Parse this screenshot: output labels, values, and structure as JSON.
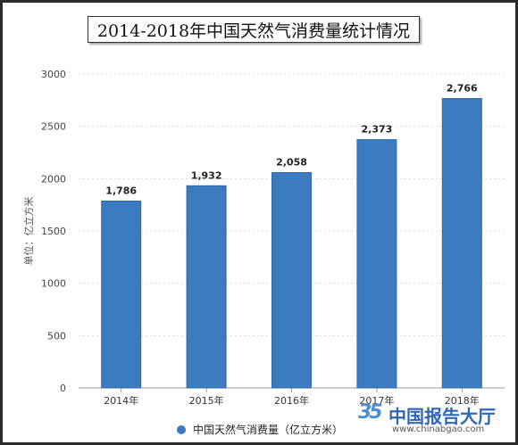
{
  "chart_data": {
    "type": "bar",
    "title": "2014-2018年中国天然气消费量统计情况",
    "ylabel": "单位：亿立方米",
    "xlabel": "",
    "categories": [
      "2014年",
      "2015年",
      "2016年",
      "2017年",
      "2018年"
    ],
    "series": [
      {
        "name": "中国天然气消费量（亿立方米）",
        "values": [
          1786,
          1932,
          2058,
          2373,
          2766
        ],
        "value_labels": [
          "1,786",
          "1,932",
          "2,058",
          "2,373",
          "2,766"
        ]
      }
    ],
    "ylim": [
      0,
      3000
    ],
    "yticks": [
      0,
      500,
      1000,
      1500,
      2000,
      2500,
      3000
    ],
    "grid": true,
    "legend_position": "bottom-center",
    "bar_color": "#3c7bc0"
  },
  "watermark": {
    "logo_glyph": "35",
    "name": "中国报告大厅",
    "url": "www.chinabgao.com"
  }
}
